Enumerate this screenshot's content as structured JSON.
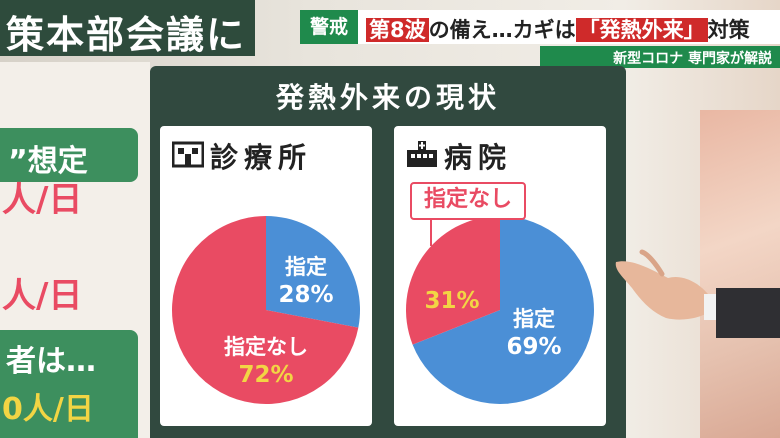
{
  "left_board": {
    "header": "策本部会議に",
    "tab": "”想定",
    "rate_line1": "人/日",
    "rate_line2": "人/日",
    "bottom_line1": "者は…",
    "bottom_line2": "0人/日"
  },
  "ticker": {
    "tag": "警戒",
    "title_part1": "第8波",
    "title_part2": "の備え…カギは",
    "title_highlight": "「発熱外来」",
    "title_part3": "対策"
  },
  "sub_ticker": "新型コロナ 専門家が解説",
  "board": {
    "title": "発熱外来の現状"
  },
  "icons": {
    "clinic": "clinic-building-icon",
    "hospital": "hospital-building-icon"
  },
  "colors": {
    "designated": "#4b8fd6",
    "not_designated": "#e94b63",
    "board": "#31493f",
    "green": "#3d8f5e"
  },
  "chart_data": [
    {
      "type": "pie",
      "title": "診療所",
      "slices": [
        {
          "label": "指定",
          "value": 28,
          "display": "28%",
          "color": "#4b8fd6"
        },
        {
          "label": "指定なし",
          "value": 72,
          "display": "72%",
          "color": "#e94b63"
        }
      ]
    },
    {
      "type": "pie",
      "title": "病院",
      "slices": [
        {
          "label": "指定",
          "value": 69,
          "display": "69%",
          "color": "#4b8fd6"
        },
        {
          "label": "指定なし",
          "value": 31,
          "display": "31%",
          "color": "#e94b63"
        }
      ],
      "annotation": "指定なし"
    }
  ]
}
